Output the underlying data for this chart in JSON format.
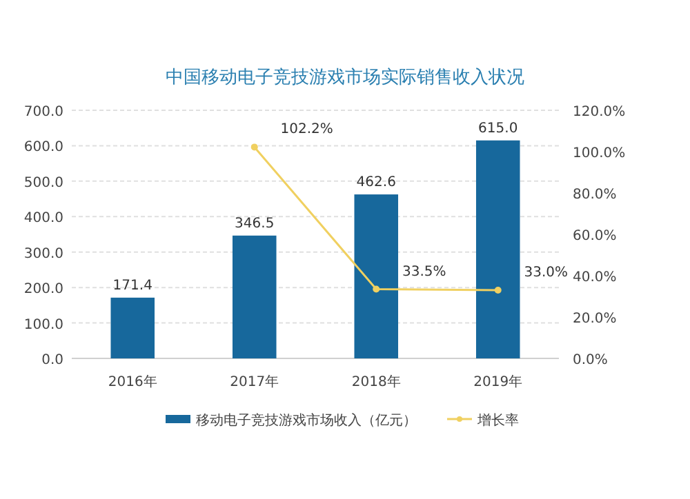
{
  "chart_data": {
    "type": "bar",
    "title": "中国移动电子竞技游戏市场实际销售收入状况",
    "categories": [
      "2016年",
      "2017年",
      "2018年",
      "2019年"
    ],
    "series": [
      {
        "name": "移动电子竞技游戏市场收入（亿元）",
        "color": "#17689c",
        "values": [
          171.4,
          346.5,
          462.6,
          615.0
        ],
        "value_labels": [
          "171.4",
          "346.5",
          "462.6",
          "615.0"
        ]
      },
      {
        "name": "增长率",
        "type": "line",
        "axis": "y2",
        "color": "#f0d060",
        "marker": "circle",
        "values": [
          null,
          102.2,
          33.5,
          33.0
        ],
        "value_labels": [
          null,
          "102.2%",
          "33.5%",
          "33.0%"
        ]
      }
    ],
    "ylim": [
      0,
      700
    ],
    "yticks": [
      {
        "value": 0,
        "label": "0.0"
      },
      {
        "value": 100,
        "label": "100.0"
      },
      {
        "value": 200,
        "label": "200.0"
      },
      {
        "value": 300,
        "label": "300.0"
      },
      {
        "value": 400,
        "label": "400.0"
      },
      {
        "value": 500,
        "label": "500.0"
      },
      {
        "value": 600,
        "label": "600.0"
      },
      {
        "value": 700,
        "label": "700.0"
      }
    ],
    "y2lim": [
      0,
      120
    ],
    "y2ticks": [
      {
        "value": 0,
        "label": "0.0%"
      },
      {
        "value": 20,
        "label": "20.0%"
      },
      {
        "value": 40,
        "label": "40.0%"
      },
      {
        "value": 60,
        "label": "60.0%"
      },
      {
        "value": 80,
        "label": "80.0%"
      },
      {
        "value": 100,
        "label": "100.0%"
      },
      {
        "value": 120,
        "label": "120.0%"
      }
    ],
    "grid": "y",
    "legend": "bottom"
  }
}
